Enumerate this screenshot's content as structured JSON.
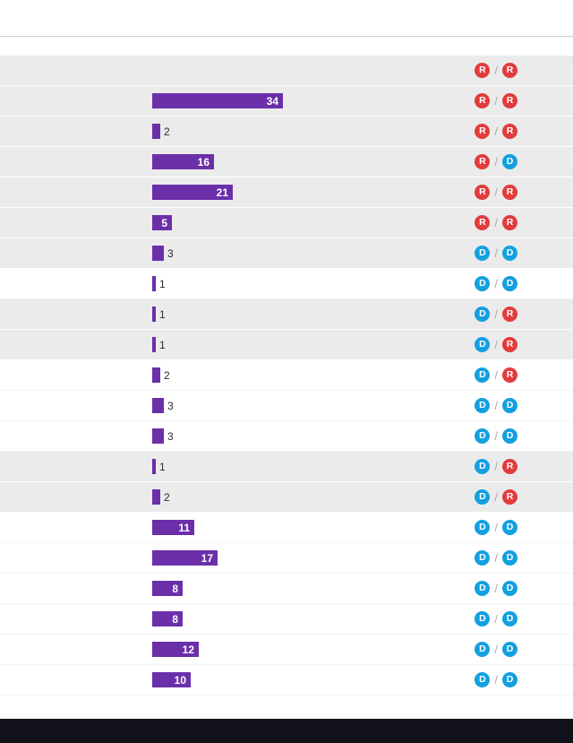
{
  "chart_data": {
    "type": "bar",
    "orientation": "horizontal",
    "value_label_position": "inside-if-wide",
    "badge_separator": "/",
    "xlim": [
      0,
      40
    ],
    "rows": [
      {
        "value": null,
        "badges": [
          "R",
          "R"
        ],
        "shaded": true
      },
      {
        "value": 34,
        "badges": [
          "R",
          "R"
        ],
        "shaded": true
      },
      {
        "value": 2,
        "badges": [
          "R",
          "R"
        ],
        "shaded": true
      },
      {
        "value": 16,
        "badges": [
          "R",
          "D"
        ],
        "shaded": true
      },
      {
        "value": 21,
        "badges": [
          "R",
          "R"
        ],
        "shaded": true
      },
      {
        "value": 5,
        "badges": [
          "R",
          "R"
        ],
        "shaded": true
      },
      {
        "value": 3,
        "badges": [
          "D",
          "D"
        ],
        "shaded": true
      },
      {
        "value": 1,
        "badges": [
          "D",
          "D"
        ],
        "shaded": false
      },
      {
        "value": 1,
        "badges": [
          "D",
          "R"
        ],
        "shaded": true
      },
      {
        "value": 1,
        "badges": [
          "D",
          "R"
        ],
        "shaded": true
      },
      {
        "value": 2,
        "badges": [
          "D",
          "R"
        ],
        "shaded": false
      },
      {
        "value": 3,
        "badges": [
          "D",
          "D"
        ],
        "shaded": false
      },
      {
        "value": 3,
        "badges": [
          "D",
          "D"
        ],
        "shaded": false
      },
      {
        "value": 1,
        "badges": [
          "D",
          "R"
        ],
        "shaded": true
      },
      {
        "value": 2,
        "badges": [
          "D",
          "R"
        ],
        "shaded": true
      },
      {
        "value": 11,
        "badges": [
          "D",
          "D"
        ],
        "shaded": false
      },
      {
        "value": 17,
        "badges": [
          "D",
          "D"
        ],
        "shaded": false
      },
      {
        "value": 8,
        "badges": [
          "D",
          "D"
        ],
        "shaded": false
      },
      {
        "value": 8,
        "badges": [
          "D",
          "D"
        ],
        "shaded": false
      },
      {
        "value": 12,
        "badges": [
          "D",
          "D"
        ],
        "shaded": false
      },
      {
        "value": 10,
        "badges": [
          "D",
          "D"
        ],
        "shaded": false
      }
    ]
  },
  "colors": {
    "bar": "#6b2faa",
    "badge_r": "#e23b3b",
    "badge_d": "#12a0e0",
    "row_shaded_bg": "#ebebeb",
    "footer_bg": "#11111b",
    "divider": "#cccccc"
  }
}
